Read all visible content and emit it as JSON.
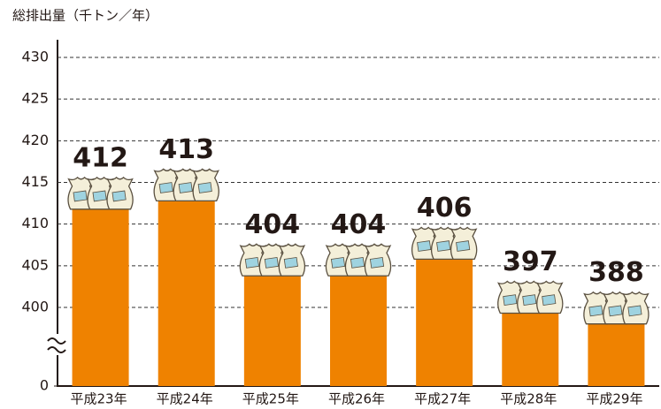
{
  "chart_data": {
    "type": "bar",
    "title": "総排出量（千トン／年）",
    "categories": [
      "平成23年",
      "平成24年",
      "平成25年",
      "平成26年",
      "平成27年",
      "平成28年",
      "平成29年"
    ],
    "values": [
      412,
      413,
      404,
      404,
      406,
      397,
      388
    ],
    "color": "#ef8200",
    "ylim": [
      0,
      430
    ],
    "yticks": [
      0,
      400,
      405,
      410,
      415,
      420,
      425,
      430
    ],
    "grid": true
  }
}
